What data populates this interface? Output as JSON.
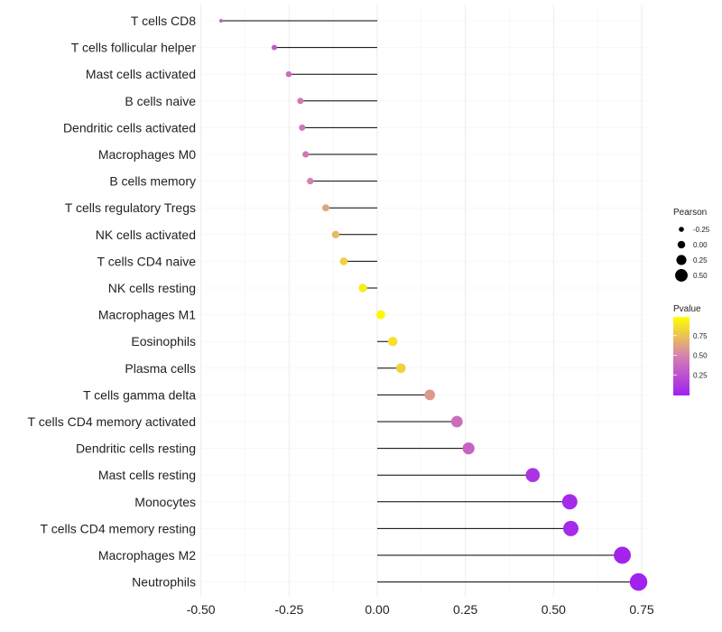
{
  "chart_data": {
    "type": "lollipop",
    "xlabel": "",
    "ylabel": "",
    "xlim": [
      -0.5,
      0.75
    ],
    "xticks": [
      "-0.50",
      "-0.25",
      "0.00",
      "0.25",
      "0.50",
      "0.75"
    ],
    "xtick_values": [
      -0.5,
      -0.25,
      0,
      0.25,
      0.5,
      0.75
    ],
    "grid": true,
    "categories": [
      "T cells CD8",
      "T cells follicular helper",
      "Mast cells activated",
      "B cells naive",
      "Dendritic cells activated",
      "Macrophages M0",
      "B cells memory",
      "T cells regulatory  Tregs ",
      "NK cells activated",
      "T cells CD4 naive",
      "NK cells resting",
      "Macrophages M1",
      "Eosinophils",
      "Plasma cells",
      "T cells gamma delta",
      "T cells CD4 memory activated",
      "Dendritic cells resting",
      "Mast cells resting",
      "Monocytes",
      "T cells CD4 memory resting",
      "Macrophages M2",
      "Neutrophils"
    ],
    "pearson": [
      -0.443,
      -0.292,
      -0.251,
      -0.218,
      -0.213,
      -0.203,
      -0.19,
      -0.146,
      -0.118,
      -0.095,
      -0.041,
      0.01,
      0.044,
      0.067,
      0.149,
      0.226,
      0.259,
      0.441,
      0.546,
      0.549,
      0.695,
      0.741
    ],
    "pvalue": [
      0.35,
      0.3,
      0.4,
      0.45,
      0.45,
      0.45,
      0.5,
      0.65,
      0.72,
      0.82,
      0.93,
      0.97,
      0.88,
      0.82,
      0.6,
      0.4,
      0.35,
      0.1,
      0.05,
      0.05,
      0.02,
      0.01
    ],
    "legend": {
      "size_title": "Pearson",
      "size_labels": [
        "-0.25",
        "0.00",
        "0.25",
        "0.50"
      ],
      "size_values": [
        -0.25,
        0,
        0.25,
        0.5
      ],
      "color_title": "Pvalue",
      "color_labels": [
        "0.75",
        "0.50",
        "0.25"
      ],
      "color_values": [
        0.75,
        0.5,
        0.25
      ],
      "color_low": "#a020f0",
      "color_mid": "#d680b0",
      "color_high": "#ffff00",
      "placement": "right"
    }
  }
}
